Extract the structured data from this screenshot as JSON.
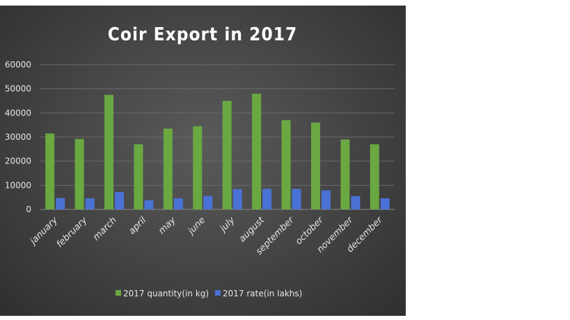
{
  "chart_data": {
    "type": "bar",
    "title": "Coir Export in 2017",
    "categories": [
      "january",
      "february",
      "march",
      "april",
      "may",
      "june",
      "july",
      "august",
      "september",
      "october",
      "november",
      "december"
    ],
    "series": [
      {
        "name": "2017 quantity(in kg)",
        "color": "#6aa842",
        "values": [
          31500,
          29200,
          47500,
          27000,
          33500,
          34500,
          45000,
          48000,
          37000,
          36000,
          29000,
          27000
        ]
      },
      {
        "name": "2017 rate(in lakhs)",
        "color": "#4a72d6",
        "values": [
          4700,
          4600,
          7200,
          3800,
          4600,
          5600,
          8400,
          8500,
          8500,
          7900,
          5500,
          4600
        ]
      }
    ],
    "yticks": [
      "0",
      "10000",
      "20000",
      "30000",
      "40000",
      "50000",
      "60000"
    ],
    "ylim": [
      0,
      60000
    ],
    "grid": true,
    "legend_position": "bottom"
  }
}
